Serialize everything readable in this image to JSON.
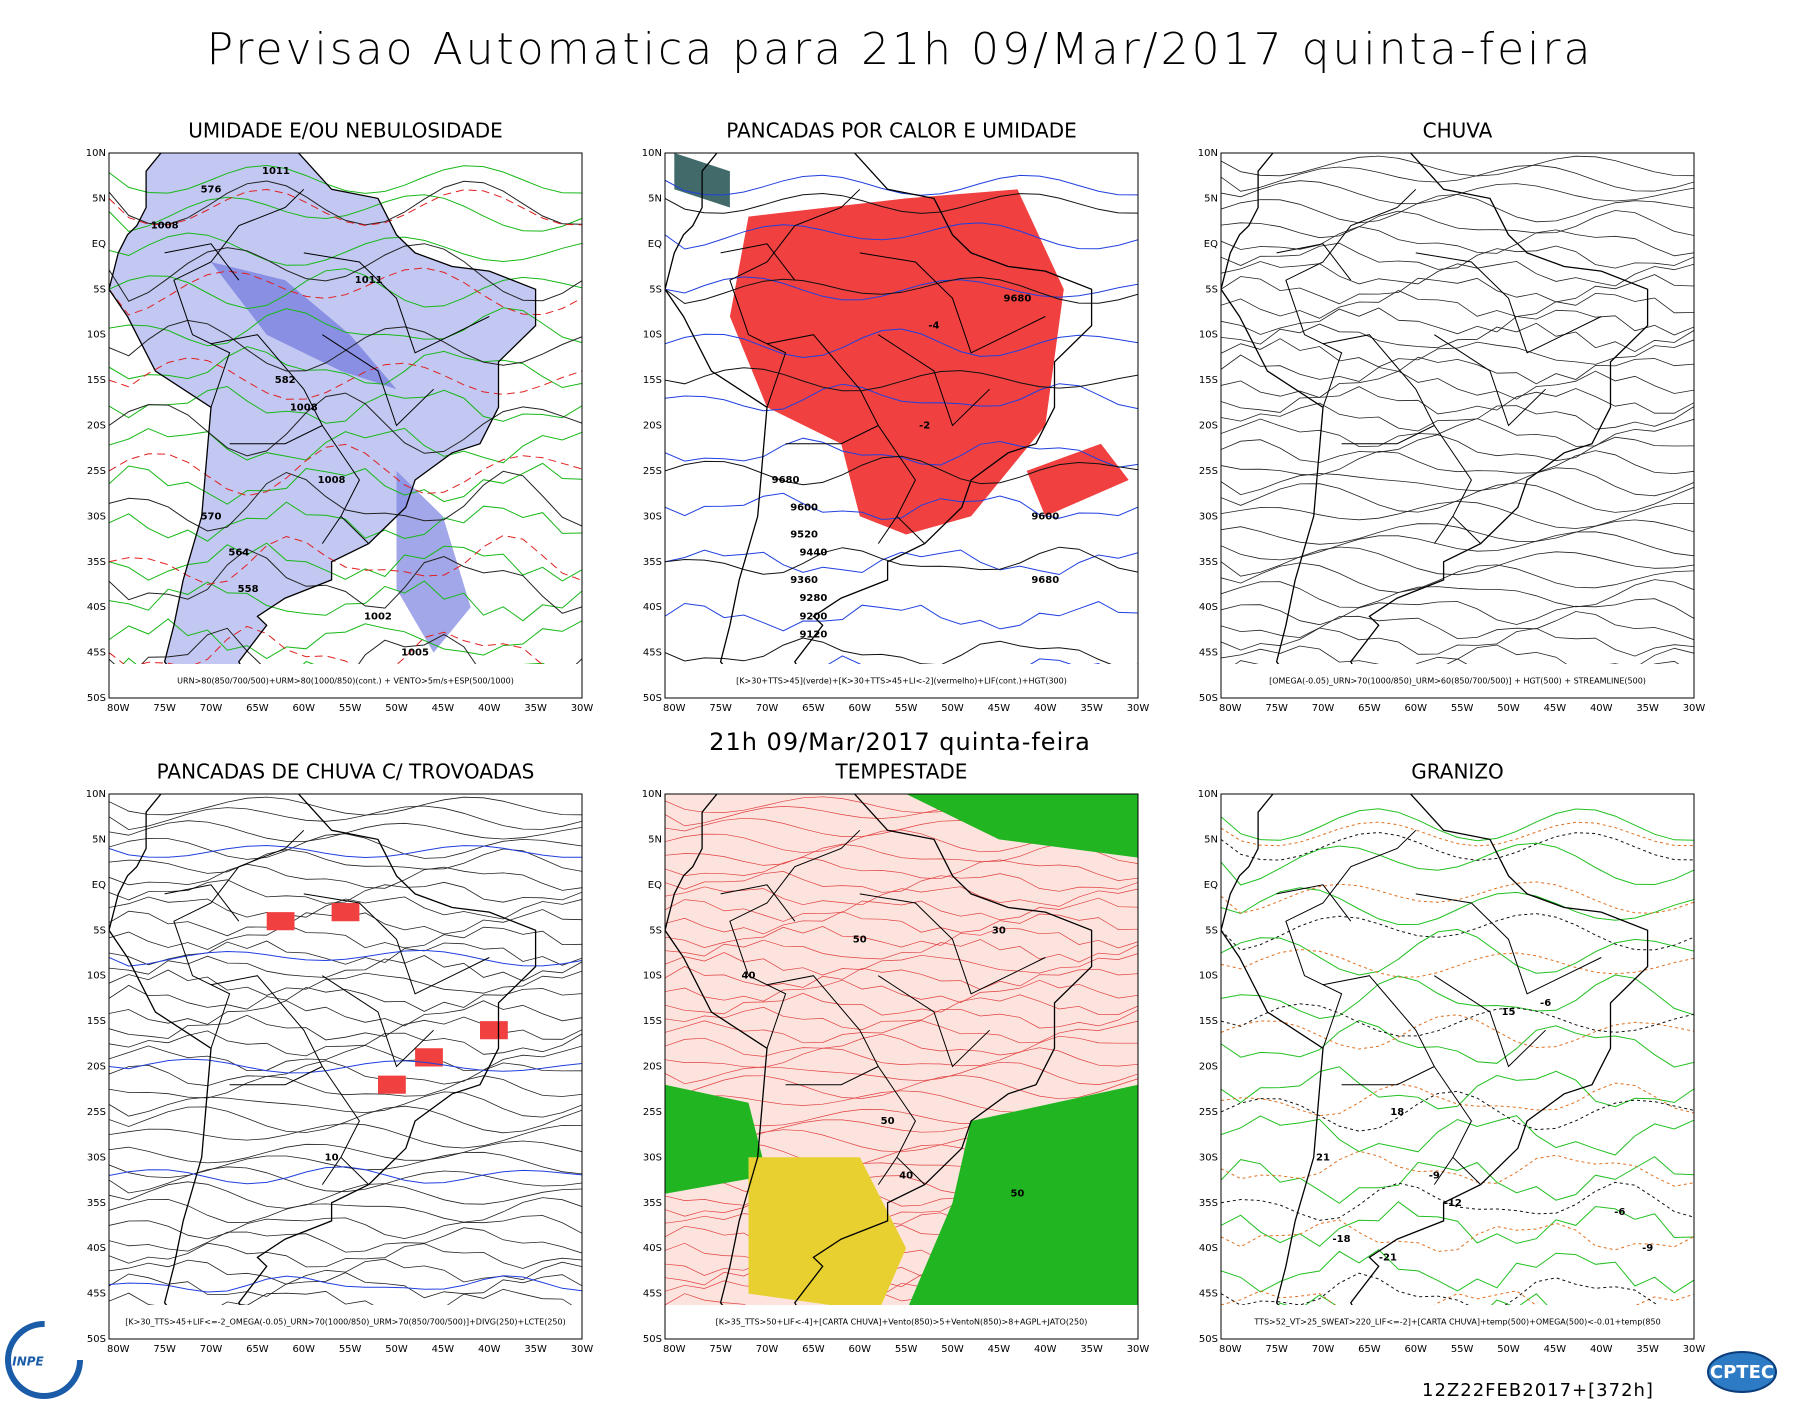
{
  "title": "Previsao Automatica  para 21h 09/Mar/2017 quinta-feira",
  "subtitle": "21h 09/Mar/2017 quinta-feira",
  "run": "12Z22FEB2017+[372h]",
  "logos": [
    "INPE",
    "CPTEC"
  ],
  "axes": {
    "lat_labels": [
      "10N",
      "5N",
      "EQ",
      "5S",
      "10S",
      "15S",
      "20S",
      "25S",
      "30S",
      "35S",
      "40S",
      "45S",
      "50S"
    ],
    "lon_labels": [
      "80W",
      "75W",
      "70W",
      "65W",
      "60W",
      "55W",
      "50W",
      "45W",
      "40W",
      "35W",
      "30W"
    ]
  },
  "panels": [
    {
      "title": "UMIDADE E/OU NEBULOSIDADE",
      "caption": "URN>80(850/700/500)+URM>80(1000/850)(cont.) + VENTO>5m/s+ESP(500/1000)",
      "contour_labels": [
        "1011",
        "1008",
        "1008",
        "1011",
        "1005",
        "1008",
        "1002",
        "576",
        "582",
        "570",
        "564",
        "558"
      ]
    },
    {
      "title": "PANCADAS POR CALOR E UMIDADE",
      "caption": "[K>30+TTS>45](verde)+[K>30+TTS>45+LI<-2](vermelho)+LIF(cont.)+HGT(300)",
      "contour_labels": [
        "9680",
        "9680",
        "9600",
        "9520",
        "9440",
        "9360",
        "9280",
        "9200",
        "9120",
        "9600",
        "9680",
        "-4",
        "-2"
      ]
    },
    {
      "title": "CHUVA",
      "caption": "[OMEGA(-0.05)_URN>70(1000/850)_URM>60(850/700/500)] + HGT(500) + STREAMLINE(500)",
      "contour_labels": []
    },
    {
      "title": "PANCADAS DE CHUVA C/ TROVOADAS",
      "caption": "[K>30_TTS>45+LIF<=-2_OMEGA(-0.05)_URN>70(1000/850)_URM>70(850/700/500)]+DIVG(250)+LCTE(250)",
      "contour_labels": [
        "10"
      ]
    },
    {
      "title": "TEMPESTADE",
      "caption": "[K>35_TTS>50+LIF<-4]+[CARTA CHUVA]+Vento(850)>5+VentoN(850)>8+AGPL+JATO(250)",
      "contour_labels": [
        "50",
        "40",
        "50",
        "30",
        "40",
        "50"
      ]
    },
    {
      "title": "GRANIZO",
      "caption": "TTS>52_VT>25_SWEAT>220_LIF<=-2]+[CARTA CHUVA]+temp(500)+OMEGA(500)<-0.01+temp(850",
      "contour_labels": [
        "-6",
        "-9",
        "-12",
        "-18",
        "-21",
        "15",
        "18",
        "21",
        "-6",
        "-9"
      ]
    }
  ]
}
